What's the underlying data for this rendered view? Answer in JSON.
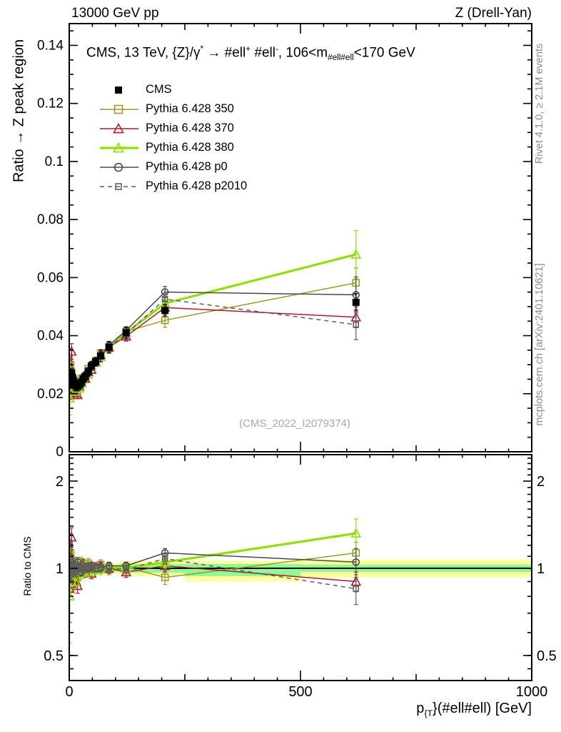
{
  "header": {
    "left": "13000 GeV pp",
    "right": "Z (Drell-Yan)"
  },
  "plot_title_segments": [
    {
      "t": "CMS, 13 TeV, {Z}/γ"
    },
    {
      "t": "*",
      "m": "sup"
    },
    {
      "t": " →  #ell"
    },
    {
      "t": "+",
      "m": "sup"
    },
    {
      "t": " #ell"
    },
    {
      "t": "-",
      "m": "sup"
    },
    {
      "t": ", 106<m"
    },
    {
      "t": "#ell#ell",
      "m": "sub"
    },
    {
      "t": "<170 GeV"
    }
  ],
  "axes": {
    "main_y_title": "Ratio → Z peak region",
    "ratio_y_title": "Ratio to CMS",
    "x_title_segments": [
      {
        "t": "p"
      },
      {
        "t": "{T",
        "m": "sub"
      },
      {
        "t": "}(#ell#ell) [GeV]"
      }
    ],
    "main_y_ticks": [
      {
        "v": 0.14,
        "label": "0.14"
      },
      {
        "v": 0.12,
        "label": "0.12"
      },
      {
        "v": 0.1,
        "label": "0.1"
      },
      {
        "v": 0.08,
        "label": "0.08"
      },
      {
        "v": 0.06,
        "label": "0.06"
      },
      {
        "v": 0.04,
        "label": "0.04"
      },
      {
        "v": 0.02,
        "label": "0.02"
      },
      {
        "v": 0,
        "label": "0"
      }
    ],
    "ratio_y_ticks": [
      {
        "v": 2,
        "label": "2"
      },
      {
        "v": 1,
        "label": "1"
      },
      {
        "v": 0.5,
        "label": "0.5"
      }
    ],
    "x_ticks": [
      {
        "v": 0,
        "label": "0"
      },
      {
        "v": 500,
        "label": "500"
      },
      {
        "v": 1000,
        "label": "1000"
      }
    ]
  },
  "side_notes": {
    "top": "Rivet 4.1.0, ≥ 2.1M events",
    "bottom": "mcplots.cern.ch [arXiv:2401.10621]"
  },
  "watermark": "(CMS_2022_I2079374)",
  "chart_data": {
    "type": "line",
    "title": "CMS, 13 TeV, Z/gamma* -> ell+ ell-, 106<m_ellell<170 GeV",
    "xlabel": "p_T(ellell) [GeV]",
    "x_range": [
      0,
      1000
    ],
    "main_panel": {
      "ylabel": "Ratio -> Z peak region",
      "ylim": [
        0,
        0.1475
      ],
      "scale": "linear"
    },
    "ratio_panel": {
      "ylabel": "Ratio to CMS",
      "ylim": [
        0.41,
        2.47
      ],
      "scale": "log"
    },
    "x": [
      1,
      3,
      5,
      7,
      9,
      11,
      13,
      15,
      18,
      22,
      26,
      30,
      35,
      41,
      48,
      57,
      68,
      86,
      123,
      207,
      620
    ],
    "cms": {
      "name": "CMS",
      "color": "#000000",
      "marker": "square-filled",
      "values": [
        0.023,
        0.0265,
        0.027,
        0.0255,
        0.0245,
        0.0235,
        0.023,
        0.0225,
        0.0225,
        0.023,
        0.024,
        0.025,
        0.026,
        0.0275,
        0.0295,
        0.031,
        0.033,
        0.036,
        0.041,
        0.0487,
        0.0515
      ],
      "errors": [
        0.0025,
        0.002,
        0.0015,
        0.0015,
        0.0015,
        0.0015,
        0.0015,
        0.0015,
        0.0015,
        0.0015,
        0.0015,
        0.0015,
        0.0015,
        0.0015,
        0.0015,
        0.0015,
        0.002,
        0.002,
        0.002,
        0.002,
        0.003
      ]
    },
    "series": [
      {
        "name": "Pythia 6.428 350",
        "color": "#999a28",
        "marker": "square-open",
        "line": "solid",
        "width": 1.5,
        "ratio": [
          0.93,
          1.13,
          1.02,
          0.97,
          1.0,
          0.96,
          0.95,
          1.02,
          0.93,
          1.0,
          1.05,
          1.02,
          0.99,
          1.04,
          1.0,
          1.01,
          1.03,
          0.99,
          1.01,
          0.93,
          1.13
        ],
        "ratio_err": [
          0.15,
          0.1,
          0.06,
          0.05,
          0.05,
          0.05,
          0.05,
          0.05,
          0.05,
          0.04,
          0.04,
          0.04,
          0.04,
          0.04,
          0.04,
          0.04,
          0.04,
          0.04,
          0.04,
          0.05,
          0.1
        ]
      },
      {
        "name": "Pythia 6.428 370",
        "color": "#a51d2d",
        "marker": "triangle-open",
        "line": "solid",
        "width": 1.5,
        "ratio": [
          0.85,
          0.95,
          1.28,
          1.05,
          0.92,
          1.0,
          1.04,
          0.9,
          0.87,
          0.98,
          1.0,
          1.03,
          0.97,
          1.0,
          0.96,
          1.0,
          1.01,
          1.0,
          0.97,
          1.02,
          0.9
        ],
        "ratio_err": [
          0.2,
          0.12,
          0.1,
          0.06,
          0.06,
          0.05,
          0.05,
          0.05,
          0.05,
          0.04,
          0.04,
          0.04,
          0.04,
          0.04,
          0.04,
          0.04,
          0.04,
          0.04,
          0.04,
          0.05,
          0.07
        ]
      },
      {
        "name": "Pythia 6.428 380",
        "color": "#8ee000",
        "marker": "triangle-open",
        "line": "solid",
        "width": 3.2,
        "ratio": [
          0.8,
          1.05,
          0.95,
          1.0,
          1.07,
          0.97,
          0.9,
          1.0,
          1.04,
          0.95,
          0.98,
          1.0,
          1.02,
          0.97,
          1.0,
          0.99,
          0.99,
          1.01,
          1.0,
          1.05,
          1.32
        ],
        "ratio_err": [
          0.25,
          0.12,
          0.08,
          0.06,
          0.06,
          0.05,
          0.05,
          0.05,
          0.05,
          0.04,
          0.04,
          0.04,
          0.04,
          0.04,
          0.04,
          0.04,
          0.04,
          0.04,
          0.04,
          0.05,
          0.16
        ]
      },
      {
        "name": "Pythia 6.428 p0",
        "color": "#4a4a4a",
        "marker": "circle-open",
        "line": "solid",
        "width": 1.5,
        "ratio": [
          1.1,
          0.97,
          1.0,
          1.03,
          1.0,
          1.02,
          0.98,
          1.0,
          1.05,
          1.0,
          0.97,
          1.0,
          1.01,
          1.0,
          1.02,
          1.0,
          1.01,
          1.02,
          1.02,
          1.13,
          1.05
        ],
        "ratio_err": [
          0.15,
          0.08,
          0.06,
          0.05,
          0.05,
          0.04,
          0.04,
          0.04,
          0.04,
          0.03,
          0.03,
          0.03,
          0.03,
          0.03,
          0.03,
          0.03,
          0.03,
          0.03,
          0.03,
          0.04,
          0.12
        ]
      },
      {
        "name": "Pythia 6.428 p2010",
        "color": "#5f5f5f",
        "marker": "square-open-small",
        "line": "dashed",
        "width": 1.5,
        "ratio": [
          1.2,
          1.0,
          0.97,
          1.0,
          1.04,
          1.0,
          1.0,
          0.97,
          1.0,
          1.02,
          1.0,
          0.99,
          1.0,
          1.02,
          1.0,
          1.0,
          1.0,
          1.0,
          0.99,
          1.08,
          0.85
        ],
        "ratio_err": [
          0.18,
          0.08,
          0.06,
          0.05,
          0.05,
          0.04,
          0.04,
          0.04,
          0.04,
          0.03,
          0.03,
          0.03,
          0.03,
          0.03,
          0.03,
          0.03,
          0.03,
          0.03,
          0.03,
          0.04,
          0.1
        ]
      }
    ],
    "bands": {
      "yellow_color": "#ffff9e",
      "green_color": "#90f996",
      "reference_line": 1,
      "bins": [
        {
          "x1": 0,
          "x2": 30,
          "ylo": 0.97,
          "yhi": 1.03,
          "glo": 0.982,
          "ghi": 1.018
        },
        {
          "x1": 30,
          "x2": 110,
          "ylo": 0.96,
          "yhi": 1.04,
          "glo": 0.975,
          "ghi": 1.025
        },
        {
          "x1": 110,
          "x2": 250,
          "ylo": 0.94,
          "yhi": 1.06,
          "glo": 0.965,
          "ghi": 1.035
        },
        {
          "x1": 250,
          "x2": 500,
          "ylo": 0.9,
          "yhi": 1.06,
          "glo": 0.94,
          "ghi": 1.035
        },
        {
          "x1": 500,
          "x2": 1000,
          "ylo": 0.93,
          "yhi": 1.07,
          "glo": 0.97,
          "ghi": 1.03
        }
      ]
    },
    "legend_position": "top-left",
    "grid": false
  }
}
